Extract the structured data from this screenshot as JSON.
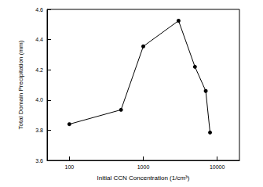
{
  "chart_data": {
    "type": "line",
    "x_label": "Initial CCN Concentration (1/cm³)",
    "y_label": "Total Domain Precipitation (mm)",
    "x": [
      100,
      500,
      1000,
      3000,
      5000,
      7000,
      8000
    ],
    "values": [
      3.84,
      3.935,
      4.355,
      4.525,
      4.22,
      4.06,
      3.785
    ],
    "color": "#000000",
    "marker": "circle",
    "line_style": "solid",
    "log": "x",
    "grid": false,
    "xlim": [
      50,
      20000
    ],
    "xticks": [
      100,
      1000,
      10000
    ],
    "ylim": [
      3.6,
      4.6
    ],
    "yticks": [
      3.6,
      3.8,
      {
        "value": 4,
        "label": "4.0"
      },
      4.2,
      4.4,
      4.6
    ]
  }
}
